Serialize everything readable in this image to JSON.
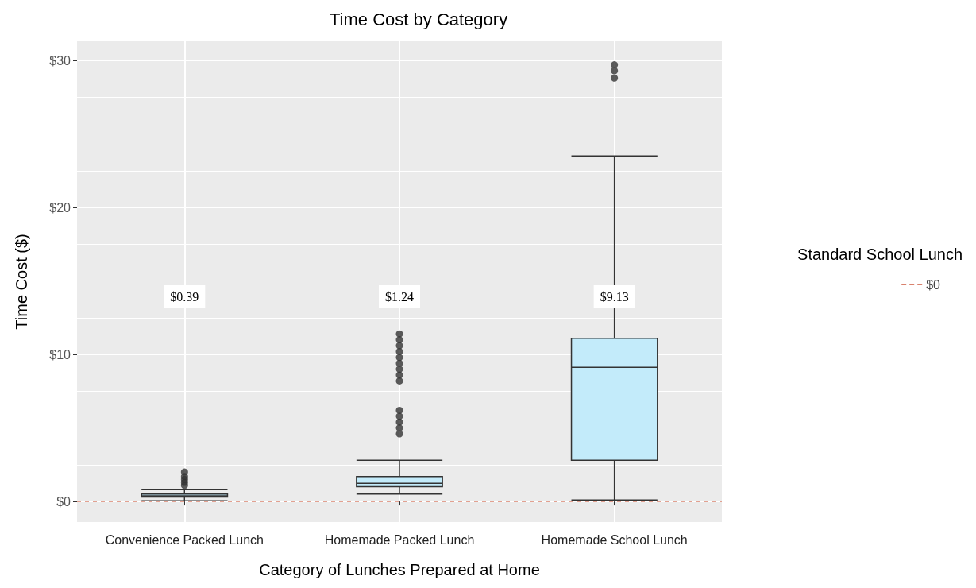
{
  "chart_data": {
    "type": "box",
    "title": "Time Cost by Category",
    "xlabel": "Category of Lunches Prepared at Home",
    "ylabel": "Time Cost ($)",
    "legend_title": "Standard School Lunch",
    "categories": [
      "Convenience Packed Lunch",
      "Homemade Packed Lunch",
      "Homemade School Lunch"
    ],
    "series": [
      {
        "color": "#c3ebfa",
        "boxes": [
          {
            "low": 0.05,
            "q1": 0.3,
            "median": 0.39,
            "q3": 0.5,
            "high": 0.8,
            "outliers": [
              1.1,
              1.3,
              1.5,
              1.7,
              2.0
            ]
          },
          {
            "low": 0.5,
            "q1": 1.0,
            "median": 1.24,
            "q3": 1.7,
            "high": 2.8,
            "outliers": [
              4.6,
              5.0,
              5.4,
              5.8,
              6.2,
              8.2,
              8.6,
              9.0,
              9.4,
              9.8,
              10.2,
              10.6,
              11.0,
              11.4
            ]
          },
          {
            "low": 0.1,
            "q1": 2.8,
            "median": 9.13,
            "q3": 11.1,
            "high": 23.5,
            "outliers": [
              28.8,
              29.3,
              29.7
            ]
          }
        ]
      }
    ],
    "annotations": [
      "$0.39",
      "$1.24",
      "$9.13"
    ],
    "ref_lines": [
      {
        "axis": "y",
        "value": 0,
        "label": "$0",
        "color": "#d9826e",
        "line_style": "dashed"
      }
    ],
    "ylim": [
      -1.4,
      31.3
    ],
    "yticks": [
      {
        "value": 0,
        "label": "$0"
      },
      {
        "value": 10,
        "label": "$10"
      },
      {
        "value": 20,
        "label": "$20"
      },
      {
        "value": 30,
        "label": "$30"
      }
    ],
    "grid": true,
    "legend": "right"
  }
}
